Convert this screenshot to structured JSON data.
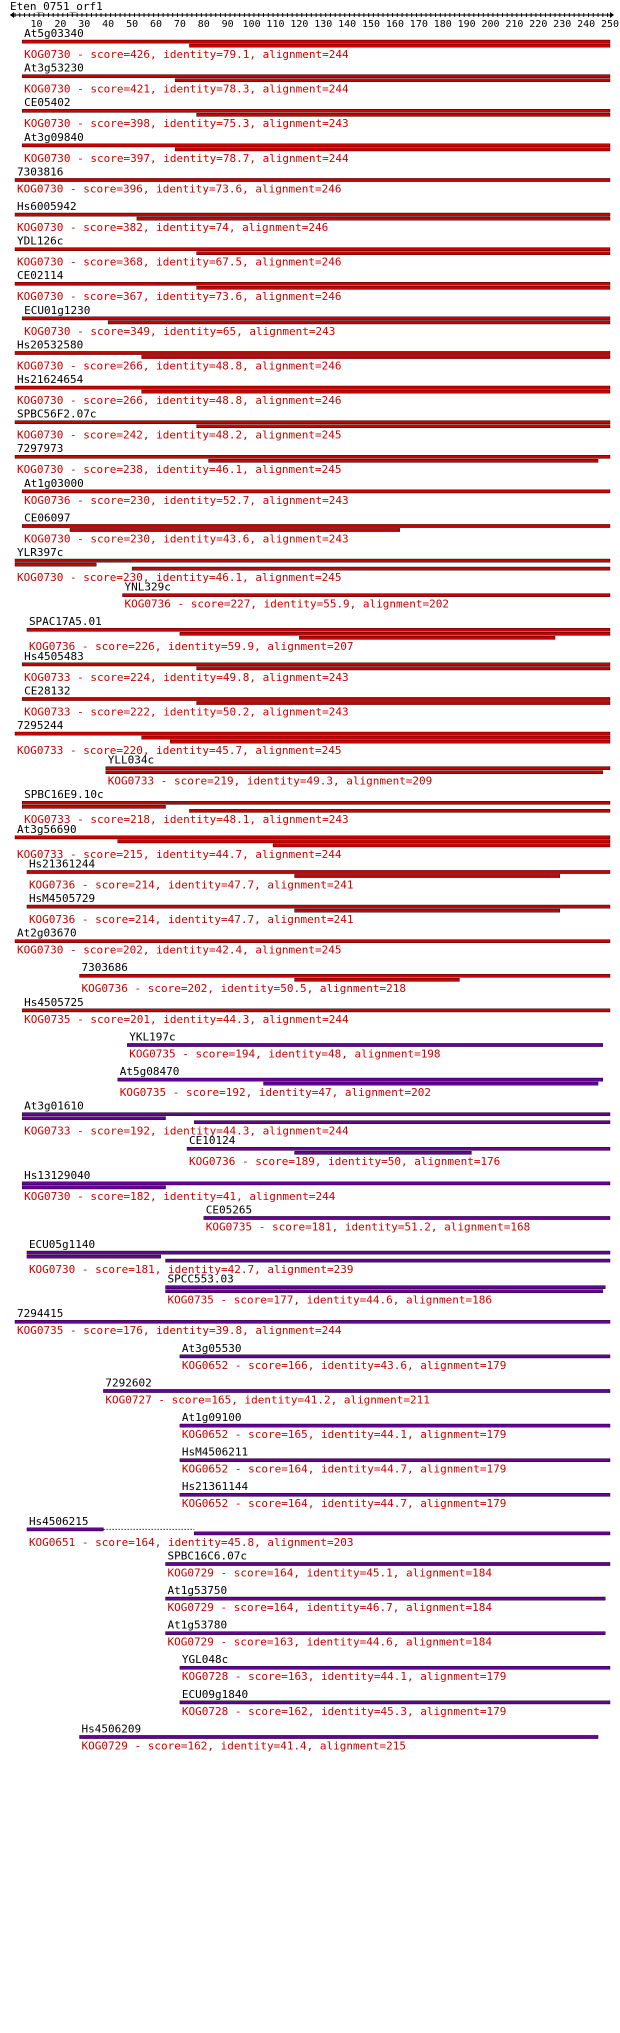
{
  "query": {
    "name": "Eten_0751_orf1",
    "length": 250,
    "ticks": [
      10,
      20,
      30,
      40,
      50,
      60,
      70,
      80,
      90,
      100,
      110,
      120,
      130,
      140,
      150,
      160,
      170,
      180,
      190,
      200,
      210,
      220,
      230,
      240,
      250
    ]
  },
  "colors": {
    "high_score": "#cc0000",
    "low_score": "#660099",
    "gap": "#333333",
    "ruler": "#000000"
  },
  "chart_data": {
    "type": "alignment-map",
    "x_range": [
      1,
      250
    ],
    "hits": [
      {
        "name": "At5g03340",
        "stats": "KOG0730 - score=426, identity=79.1, alignment=244",
        "start": 4,
        "end": 250,
        "color": "high",
        "segs": [
          [
            4,
            250
          ],
          [
            74,
            250
          ]
        ],
        "gaps": [
          [
            48,
            74
          ]
        ]
      },
      {
        "name": "At3g53230",
        "stats": "KOG0730 - score=421, identity=78.3, alignment=244",
        "start": 4,
        "end": 250,
        "color": "high",
        "segs": [
          [
            4,
            250
          ],
          [
            68,
            250
          ]
        ],
        "gaps": []
      },
      {
        "name": "CE05402",
        "stats": "KOG0730 - score=398, identity=75.3, alignment=243",
        "start": 4,
        "end": 250,
        "color": "high",
        "segs": [
          [
            4,
            250
          ],
          [
            77,
            250
          ]
        ],
        "gaps": []
      },
      {
        "name": "At3g09840",
        "stats": "KOG0730 - score=397, identity=78.7, alignment=244",
        "start": 4,
        "end": 250,
        "color": "high",
        "segs": [
          [
            4,
            250
          ],
          [
            68,
            250
          ]
        ],
        "gaps": []
      },
      {
        "name": "7303816",
        "stats": "KOG0730 - score=396, identity=73.6, alignment=246",
        "start": 1,
        "end": 250,
        "color": "high",
        "segs": [
          [
            1,
            250
          ]
        ],
        "gaps": []
      },
      {
        "name": "Hs6005942",
        "stats": "KOG0730 - score=382, identity=74, alignment=246",
        "start": 1,
        "end": 250,
        "color": "high",
        "segs": [
          [
            1,
            250
          ],
          [
            52,
            250
          ]
        ],
        "gaps": []
      },
      {
        "name": "YDL126c",
        "stats": "KOG0730 - score=368, identity=67.5, alignment=246",
        "start": 1,
        "end": 250,
        "color": "high",
        "segs": [
          [
            1,
            250
          ],
          [
            77,
            250
          ]
        ],
        "gaps": []
      },
      {
        "name": "CE02114",
        "stats": "KOG0730 - score=367, identity=73.6, alignment=246",
        "start": 1,
        "end": 250,
        "color": "high",
        "segs": [
          [
            1,
            250
          ],
          [
            77,
            250
          ]
        ],
        "gaps": [
          [
            60,
            77
          ]
        ]
      },
      {
        "name": "ECU01g1230",
        "stats": "KOG0730 - score=349, identity=65, alignment=243",
        "start": 4,
        "end": 250,
        "color": "high",
        "segs": [
          [
            4,
            250
          ],
          [
            40,
            250
          ]
        ],
        "gaps": []
      },
      {
        "name": "Hs20532580",
        "stats": "KOG0730 - score=266, identity=48.8, alignment=246",
        "start": 1,
        "end": 250,
        "color": "high",
        "segs": [
          [
            1,
            250
          ],
          [
            54,
            250
          ]
        ],
        "gaps": []
      },
      {
        "name": "Hs21624654",
        "stats": "KOG0730 - score=266, identity=48.8, alignment=246",
        "start": 1,
        "end": 250,
        "color": "high",
        "segs": [
          [
            1,
            250
          ],
          [
            54,
            250
          ]
        ],
        "gaps": []
      },
      {
        "name": "SPBC56F2.07c",
        "stats": "KOG0730 - score=242, identity=48.2, alignment=245",
        "start": 1,
        "end": 250,
        "color": "high",
        "segs": [
          [
            1,
            250
          ],
          [
            77,
            250
          ]
        ],
        "gaps": []
      },
      {
        "name": "7297973",
        "stats": "KOG0730 - score=238, identity=46.1, alignment=245",
        "start": 1,
        "end": 250,
        "color": "high",
        "segs": [
          [
            1,
            250
          ],
          [
            82,
            245
          ]
        ],
        "gaps": []
      },
      {
        "name": "At1g03000",
        "stats": "KOG0736 - score=230, identity=52.7, alignment=243",
        "start": 4,
        "end": 250,
        "color": "high",
        "segs": [
          [
            4,
            250
          ]
        ],
        "gaps": []
      },
      {
        "name": "CE06097",
        "stats": "KOG0730 - score=230, identity=43.6, alignment=243",
        "start": 4,
        "end": 250,
        "color": "high",
        "segs": [
          [
            4,
            250
          ],
          [
            24,
            162
          ]
        ],
        "gaps": []
      },
      {
        "name": "YLR397c",
        "stats": "KOG0730 - score=230, identity=46.1, alignment=245",
        "start": 1,
        "end": 250,
        "color": "high",
        "segs": [
          [
            1,
            250
          ],
          [
            1,
            35
          ],
          [
            50,
            250
          ]
        ],
        "gaps": [
          [
            35,
            50
          ]
        ]
      },
      {
        "name": "YNL329c",
        "stats": "KOG0736 - score=227, identity=55.9, alignment=202",
        "start": 46,
        "end": 250,
        "color": "high",
        "segs": [
          [
            46,
            250
          ]
        ],
        "gaps": []
      },
      {
        "name": "SPAC17A5.01",
        "stats": "KOG0736 - score=226, identity=59.9, alignment=207",
        "start": 6,
        "end": 250,
        "color": "high",
        "segs": [
          [
            6,
            250
          ],
          [
            70,
            250
          ],
          [
            120,
            227
          ]
        ],
        "gaps": []
      },
      {
        "name": "Hs4505483",
        "stats": "KOG0733 - score=224, identity=49.8, alignment=243",
        "start": 4,
        "end": 250,
        "color": "high",
        "segs": [
          [
            4,
            250
          ],
          [
            77,
            250
          ]
        ],
        "gaps": []
      },
      {
        "name": "CE28132",
        "stats": "KOG0733 - score=222, identity=50.2, alignment=243",
        "start": 4,
        "end": 250,
        "color": "high",
        "segs": [
          [
            4,
            250
          ],
          [
            77,
            250
          ]
        ],
        "gaps": []
      },
      {
        "name": "7295244",
        "stats": "KOG0733 - score=220, identity=45.7, alignment=245",
        "start": 1,
        "end": 250,
        "color": "high",
        "segs": [
          [
            1,
            250
          ],
          [
            54,
            250
          ],
          [
            66,
            250
          ]
        ],
        "gaps": []
      },
      {
        "name": "YLL034c",
        "stats": "KOG0733 - score=219, identity=49.3, alignment=209",
        "start": 39,
        "end": 250,
        "color": "high",
        "segs": [
          [
            39,
            250
          ],
          [
            39,
            247
          ]
        ],
        "gaps": []
      },
      {
        "name": "SPBC16E9.10c",
        "stats": "KOG0733 - score=218, identity=48.1, alignment=243",
        "start": 4,
        "end": 250,
        "color": "high",
        "segs": [
          [
            4,
            250
          ],
          [
            4,
            64
          ],
          [
            74,
            250
          ]
        ],
        "gaps": [
          [
            64,
            74
          ]
        ]
      },
      {
        "name": "At3g56690",
        "stats": "KOG0733 - score=215, identity=44.7, alignment=244",
        "start": 1,
        "end": 250,
        "color": "high",
        "segs": [
          [
            1,
            250
          ],
          [
            44,
            250
          ],
          [
            109,
            250
          ]
        ],
        "gaps": []
      },
      {
        "name": "Hs21361244",
        "stats": "KOG0736 - score=214, identity=47.7, alignment=241",
        "start": 6,
        "end": 250,
        "color": "high",
        "segs": [
          [
            6,
            250
          ],
          [
            118,
            229
          ]
        ],
        "gaps": []
      },
      {
        "name": "HsM4505729",
        "stats": "KOG0736 - score=214, identity=47.7, alignment=241",
        "start": 6,
        "end": 250,
        "color": "high",
        "segs": [
          [
            6,
            250
          ],
          [
            118,
            229
          ]
        ],
        "gaps": []
      },
      {
        "name": "At2g03670",
        "stats": "KOG0730 - score=202, identity=42.4, alignment=245",
        "start": 1,
        "end": 250,
        "color": "high",
        "segs": [
          [
            1,
            250
          ]
        ],
        "gaps": []
      },
      {
        "name": "7303686",
        "stats": "KOG0736 - score=202, identity=50.5, alignment=218",
        "start": 28,
        "end": 250,
        "color": "high",
        "segs": [
          [
            28,
            250
          ],
          [
            118,
            187
          ]
        ],
        "gaps": []
      },
      {
        "name": "Hs4505725",
        "stats": "KOG0735 - score=201, identity=44.3, alignment=244",
        "start": 4,
        "end": 250,
        "color": "high",
        "segs": [
          [
            4,
            250
          ]
        ],
        "gaps": []
      },
      {
        "name": "YKL197c",
        "stats": "KOG0735 - score=194, identity=48, alignment=198",
        "start": 48,
        "end": 247,
        "color": "low",
        "segs": [
          [
            48,
            247
          ]
        ],
        "gaps": []
      },
      {
        "name": "At5g08470",
        "stats": "KOG0735 - score=192, identity=47, alignment=202",
        "start": 44,
        "end": 247,
        "color": "low",
        "segs": [
          [
            44,
            247
          ],
          [
            105,
            245
          ]
        ],
        "gaps": []
      },
      {
        "name": "At3g01610",
        "stats": "KOG0733 - score=192, identity=44.3, alignment=244",
        "start": 4,
        "end": 250,
        "color": "low",
        "segs": [
          [
            4,
            250
          ],
          [
            4,
            64
          ],
          [
            76,
            250
          ]
        ],
        "gaps": [
          [
            64,
            76
          ]
        ]
      },
      {
        "name": "CE10124",
        "stats": "KOG0736 - score=189, identity=50, alignment=176",
        "start": 73,
        "end": 250,
        "color": "low",
        "segs": [
          [
            73,
            250
          ],
          [
            118,
            192
          ]
        ],
        "gaps": []
      },
      {
        "name": "Hs13129040",
        "stats": "KOG0730 - score=182, identity=41, alignment=244",
        "start": 4,
        "end": 250,
        "color": "low",
        "segs": [
          [
            4,
            250
          ],
          [
            4,
            64
          ]
        ],
        "gaps": []
      },
      {
        "name": "CE05265",
        "stats": "KOG0735 - score=181, identity=51.2, alignment=168",
        "start": 80,
        "end": 250,
        "color": "low",
        "segs": [
          [
            80,
            250
          ]
        ],
        "gaps": []
      },
      {
        "name": "ECU05g1140",
        "stats": "KOG0730 - score=181, identity=42.7, alignment=239",
        "start": 6,
        "end": 250,
        "color": "low",
        "segs": [
          [
            6,
            250
          ],
          [
            6,
            62
          ],
          [
            64,
            250
          ]
        ],
        "gaps": []
      },
      {
        "name": "SPCC553.03",
        "stats": "KOG0735 - score=177, identity=44.6, alignment=186",
        "start": 64,
        "end": 248,
        "color": "low",
        "segs": [
          [
            64,
            248
          ],
          [
            64,
            247
          ]
        ],
        "gaps": []
      },
      {
        "name": "7294415",
        "stats": "KOG0735 - score=176, identity=39.8, alignment=244",
        "start": 1,
        "end": 250,
        "color": "low",
        "segs": [
          [
            1,
            250
          ]
        ],
        "gaps": []
      },
      {
        "name": "At3g05530",
        "stats": "KOG0652 - score=166, identity=43.6, alignment=179",
        "start": 70,
        "end": 250,
        "color": "low",
        "segs": [
          [
            70,
            250
          ]
        ],
        "gaps": []
      },
      {
        "name": "7292602",
        "stats": "KOG0727 - score=165, identity=41.2, alignment=211",
        "start": 38,
        "end": 250,
        "color": "low",
        "segs": [
          [
            38,
            250
          ]
        ],
        "gaps": []
      },
      {
        "name": "At1g09100",
        "stats": "KOG0652 - score=165, identity=44.1, alignment=179",
        "start": 70,
        "end": 250,
        "color": "low",
        "segs": [
          [
            70,
            250
          ]
        ],
        "gaps": []
      },
      {
        "name": "HsM4506211",
        "stats": "KOG0652 - score=164, identity=44.7, alignment=179",
        "start": 70,
        "end": 250,
        "color": "low",
        "segs": [
          [
            70,
            250
          ]
        ],
        "gaps": []
      },
      {
        "name": "Hs21361144",
        "stats": "KOG0652 - score=164, identity=44.7, alignment=179",
        "start": 70,
        "end": 250,
        "color": "low",
        "segs": [
          [
            70,
            250
          ]
        ],
        "gaps": []
      },
      {
        "name": "Hs4506215",
        "stats": "KOG0651 - score=164, identity=45.8, alignment=203",
        "start": 6,
        "end": 250,
        "color": "low",
        "segs": [
          [
            6,
            38
          ],
          [
            76,
            250
          ]
        ],
        "gaps": [
          [
            38,
            76
          ]
        ]
      },
      {
        "name": "SPBC16C6.07c",
        "stats": "KOG0729 - score=164, identity=45.1, alignment=184",
        "start": 64,
        "end": 250,
        "color": "low",
        "segs": [
          [
            64,
            250
          ]
        ],
        "gaps": []
      },
      {
        "name": "At1g53750",
        "stats": "KOG0729 - score=164, identity=46.7, alignment=184",
        "start": 64,
        "end": 248,
        "color": "low",
        "segs": [
          [
            64,
            248
          ]
        ],
        "gaps": []
      },
      {
        "name": "At1g53780",
        "stats": "KOG0729 - score=163, identity=44.6, alignment=184",
        "start": 64,
        "end": 248,
        "color": "low",
        "segs": [
          [
            64,
            248
          ]
        ],
        "gaps": []
      },
      {
        "name": "YGL048c",
        "stats": "KOG0728 - score=163, identity=44.1, alignment=179",
        "start": 70,
        "end": 250,
        "color": "low",
        "segs": [
          [
            70,
            250
          ]
        ],
        "gaps": []
      },
      {
        "name": "ECU09g1840",
        "stats": "KOG0728 - score=162, identity=45.3, alignment=179",
        "start": 70,
        "end": 250,
        "color": "low",
        "segs": [
          [
            70,
            250
          ]
        ],
        "gaps": []
      },
      {
        "name": "Hs4506209",
        "stats": "KOG0729 - score=162, identity=41.4, alignment=215",
        "start": 28,
        "end": 245,
        "color": "low",
        "segs": [
          [
            28,
            245
          ]
        ],
        "gaps": []
      }
    ]
  }
}
